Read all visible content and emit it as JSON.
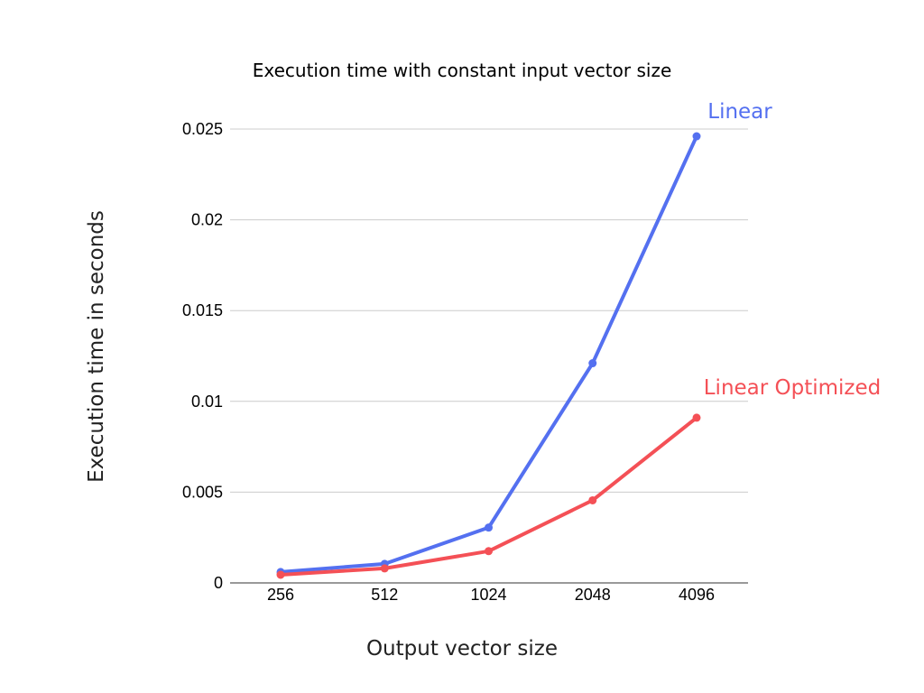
{
  "chart_data": {
    "type": "line",
    "title": "Execution time with constant input vector size",
    "xlabel": "Output vector size",
    "ylabel": "Execution time in seconds",
    "categories": [
      "256",
      "512",
      "1024",
      "2048",
      "4096"
    ],
    "y_ticks": [
      "0",
      "0.005",
      "0.01",
      "0.015",
      "0.02",
      "0.025"
    ],
    "ylim": [
      0,
      0.025
    ],
    "grid": true,
    "legend": "inline labels at line ends",
    "series": [
      {
        "name": "Linear",
        "color": "#5470f0",
        "values": [
          0.0006,
          0.00105,
          0.00305,
          0.0121,
          0.0246
        ]
      },
      {
        "name": "Linear Optimized",
        "color": "#f45056",
        "values": [
          0.00045,
          0.0008,
          0.00175,
          0.00455,
          0.0091
        ]
      }
    ]
  }
}
